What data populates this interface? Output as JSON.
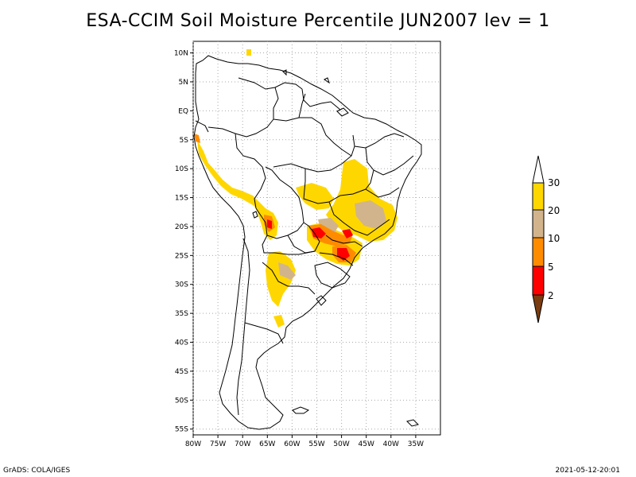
{
  "title": "ESA-CCIM Soil Moisture Percentile JUN2007 lev = 1",
  "footer": {
    "left": "GrADS: COLA/IGES",
    "right": "2021-05-12-20:01"
  },
  "map": {
    "lon_range": [
      -80,
      -30
    ],
    "lat_range": [
      -56,
      12
    ],
    "lon_ticks": [
      "80W",
      "75W",
      "70W",
      "65W",
      "60W",
      "55W",
      "50W",
      "45W",
      "40W",
      "35W"
    ],
    "lat_ticks": [
      "10N",
      "5N",
      "EQ",
      "5S",
      "10S",
      "15S",
      "20S",
      "25S",
      "30S",
      "35S",
      "40S",
      "45S",
      "50S",
      "55S"
    ],
    "grid": true
  },
  "legend": {
    "levels": [
      "2",
      "5",
      "10",
      "20",
      "30"
    ],
    "colors": [
      "#7a3c10",
      "#ff0000",
      "#ff8c00",
      "#d2b48c",
      "#ffd700"
    ]
  },
  "colors": {
    "red": "#ff0000",
    "orange": "#ff8c00",
    "tan": "#d2b48c",
    "yellow": "#ffd700",
    "brown": "#7a3c10"
  }
}
